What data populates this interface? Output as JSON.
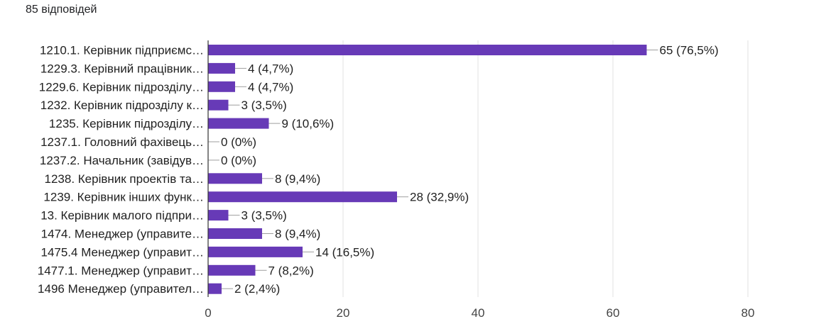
{
  "header": {
    "responses_label": "85 відповідей"
  },
  "chart_data": {
    "type": "bar",
    "orientation": "horizontal",
    "categories": [
      "1210.1. Керівник підприємс…",
      "1229.3. Керівний працівник…",
      "1229.6. Керівник підрозділу…",
      "1232. Керівник підрозділу к…",
      "1235. Керівник підрозділу…",
      "1237.1. Головний фахівець…",
      "1237.2. Начальник (завідув…",
      "1238. Керівник проектів та…",
      "1239. Керівник інших функ…",
      "13. Керівник малого підпри…",
      "1474. Менеджер (управите…",
      "1475.4 Менеджер (управит…",
      "1477.1. Менеджер (управит…",
      "1496 Менеджер (управител…"
    ],
    "values": [
      65,
      4,
      4,
      3,
      9,
      0,
      0,
      8,
      28,
      3,
      8,
      14,
      7,
      2
    ],
    "data_labels": [
      "65 (76,5%)",
      "4 (4,7%)",
      "4 (4,7%)",
      "3 (3,5%)",
      "9 (10,6%)",
      "0 (0%)",
      "0 (0%)",
      "8 (9,4%)",
      "28 (32,9%)",
      "3 (3,5%)",
      "8 (9,4%)",
      "14 (16,5%)",
      "7 (8,2%)",
      "2 (2,4%)"
    ],
    "xlim": [
      0,
      80
    ],
    "xticks": [
      0,
      20,
      40,
      60,
      80
    ],
    "grid": true,
    "bar_color": "#673ab7",
    "title": "",
    "xlabel": "",
    "ylabel": ""
  }
}
